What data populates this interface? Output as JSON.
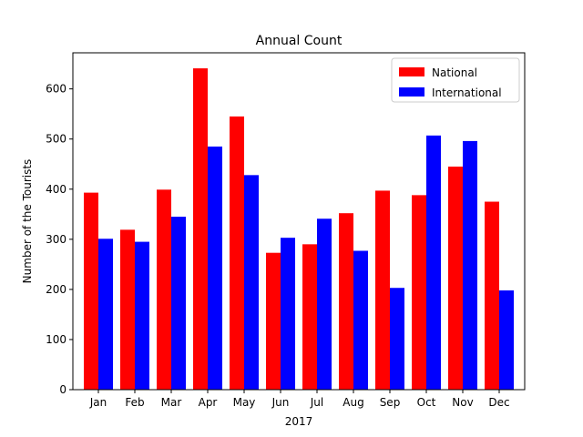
{
  "chart_data": {
    "type": "bar",
    "title": "Annual Count",
    "xlabel": "2017",
    "ylabel": "Number of the Tourists",
    "categories": [
      "Jan",
      "Feb",
      "Mar",
      "Apr",
      "May",
      "Jun",
      "Jul",
      "Aug",
      "Sep",
      "Oct",
      "Nov",
      "Dec"
    ],
    "series": [
      {
        "name": "National",
        "color": "#ff0000",
        "values": [
          393,
          319,
          399,
          641,
          545,
          273,
          290,
          352,
          397,
          388,
          445,
          375
        ]
      },
      {
        "name": "International",
        "color": "#0000ff",
        "values": [
          301,
          295,
          345,
          485,
          428,
          303,
          341,
          277,
          203,
          507,
          496,
          198
        ]
      }
    ],
    "ylim": [
      0,
      672
    ],
    "yticks": [
      0,
      100,
      200,
      300,
      400,
      500,
      600
    ],
    "grid": false,
    "legend_position": "top-right"
  }
}
